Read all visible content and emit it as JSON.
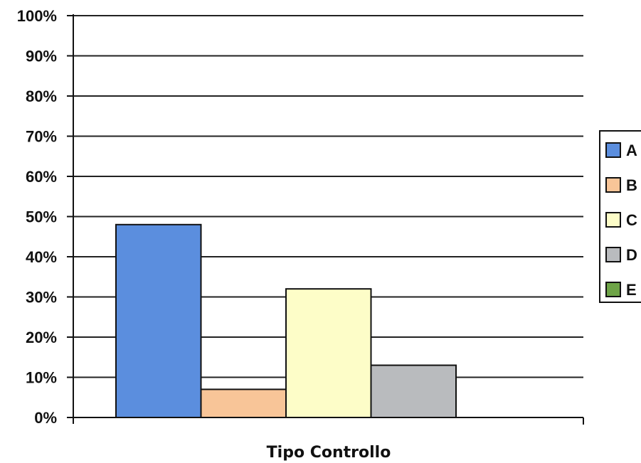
{
  "chart_data": {
    "type": "bar",
    "title": "",
    "xlabel": "Tipo Controllo",
    "ylabel": "",
    "ylim": [
      0,
      100
    ],
    "ytick_step": 10,
    "y_format": "percent",
    "grid": true,
    "legend_position": "right",
    "series": [
      {
        "name": "A",
        "value": 48,
        "color": "#5b8ede"
      },
      {
        "name": "B",
        "value": 7,
        "color": "#f8c598"
      },
      {
        "name": "C",
        "value": 32,
        "color": "#fdfdc8"
      },
      {
        "name": "D",
        "value": 13,
        "color": "#b9bbbe"
      },
      {
        "name": "E",
        "value": 0,
        "color": "#6ea447"
      }
    ]
  }
}
